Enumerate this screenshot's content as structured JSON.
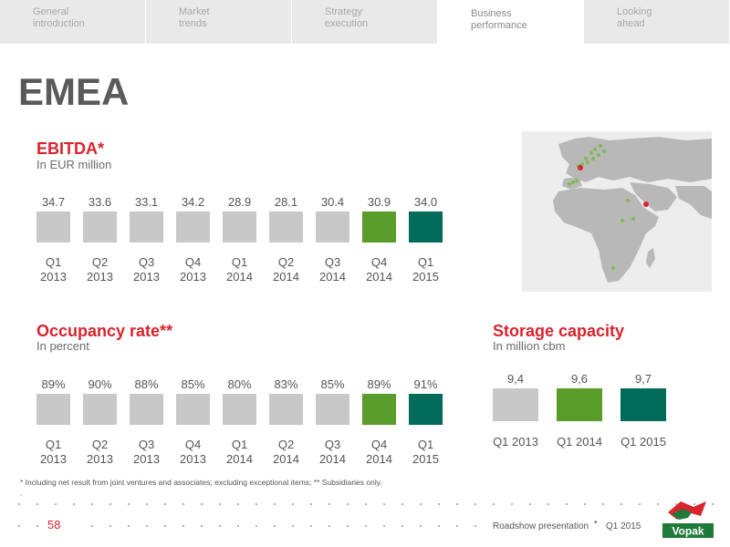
{
  "nav": {
    "tabs": [
      {
        "label": "General\nintroduction",
        "active": false
      },
      {
        "label": "Market\ntrends",
        "active": false
      },
      {
        "label": "Strategy\nexecution",
        "active": false
      },
      {
        "label": "Business\nperformance",
        "active": true
      },
      {
        "label": "Looking\nahead",
        "active": false
      }
    ]
  },
  "page_title": "EMEA",
  "colors": {
    "accent_red": "#d9232d",
    "bar_grey": "#c8c8c8",
    "bar_green": "#5a9c2a",
    "bar_teal": "#006b58",
    "map_land": "#b8b8b8",
    "map_dot_green": "#7dbb4c",
    "map_dot_red": "#d9232d"
  },
  "chart_data": [
    {
      "type": "bar",
      "title": "EBITDA*",
      "subtitle": "In EUR million",
      "categories": [
        "Q1 2013",
        "Q2 2013",
        "Q3 2013",
        "Q4 2013",
        "Q1 2014",
        "Q2 2014",
        "Q3 2014",
        "Q4 2014",
        "Q1 2015"
      ],
      "category_lines": [
        [
          "Q1",
          "2013"
        ],
        [
          "Q2",
          "2013"
        ],
        [
          "Q3",
          "2013"
        ],
        [
          "Q4",
          "2013"
        ],
        [
          "Q1",
          "2014"
        ],
        [
          "Q2",
          "2014"
        ],
        [
          "Q3",
          "2014"
        ],
        [
          "Q4",
          "2014"
        ],
        [
          "Q1",
          "2015"
        ]
      ],
      "values": [
        34.7,
        33.6,
        33.1,
        34.2,
        28.9,
        28.1,
        30.4,
        30.9,
        34.0
      ],
      "value_labels": [
        "34.7",
        "33.6",
        "33.1",
        "34.2",
        "28.9",
        "28.1",
        "30.4",
        "30.9",
        "34.0"
      ],
      "bar_colors": [
        "#c8c8c8",
        "#c8c8c8",
        "#c8c8c8",
        "#c8c8c8",
        "#c8c8c8",
        "#c8c8c8",
        "#c8c8c8",
        "#5a9c2a",
        "#006b58"
      ],
      "axis_visible": false,
      "grid": false
    },
    {
      "type": "bar",
      "title": "Occupancy rate**",
      "subtitle": "In percent",
      "categories": [
        "Q1 2013",
        "Q2 2013",
        "Q3 2013",
        "Q4 2013",
        "Q1 2014",
        "Q2 2014",
        "Q3 2014",
        "Q4 2014",
        "Q1 2015"
      ],
      "category_lines": [
        [
          "Q1",
          "2013"
        ],
        [
          "Q2",
          "2013"
        ],
        [
          "Q3",
          "2013"
        ],
        [
          "Q4",
          "2013"
        ],
        [
          "Q1",
          "2014"
        ],
        [
          "Q2",
          "2014"
        ],
        [
          "Q3",
          "2014"
        ],
        [
          "Q4",
          "2014"
        ],
        [
          "Q1",
          "2015"
        ]
      ],
      "values": [
        89,
        90,
        88,
        85,
        80,
        83,
        85,
        89,
        91
      ],
      "value_labels": [
        "89%",
        "90%",
        "88%",
        "85%",
        "80%",
        "83%",
        "85%",
        "89%",
        "91%"
      ],
      "bar_colors": [
        "#c8c8c8",
        "#c8c8c8",
        "#c8c8c8",
        "#c8c8c8",
        "#c8c8c8",
        "#c8c8c8",
        "#c8c8c8",
        "#5a9c2a",
        "#006b58"
      ],
      "axis_visible": false,
      "grid": false
    },
    {
      "type": "bar",
      "title": "Storage capacity",
      "subtitle": "In million cbm",
      "categories": [
        "Q1 2013",
        "Q1 2014",
        "Q1 2015"
      ],
      "values": [
        9.4,
        9.6,
        9.7
      ],
      "value_labels": [
        "9,4",
        "9,6",
        "9,7"
      ],
      "bar_colors": [
        "#c8c8c8",
        "#5a9c2a",
        "#006b58"
      ],
      "axis_visible": false,
      "grid": false
    }
  ],
  "footnote": "* Including net result from joint ventures and associates; excluding exceptional items; ** Subsidiaries only.",
  "footnote_dot": ".",
  "footer": {
    "page_number": "58",
    "presentation": "Roadshow presentation",
    "separator": "•",
    "date": "Q1 2015",
    "logo_text": "Vopak"
  }
}
